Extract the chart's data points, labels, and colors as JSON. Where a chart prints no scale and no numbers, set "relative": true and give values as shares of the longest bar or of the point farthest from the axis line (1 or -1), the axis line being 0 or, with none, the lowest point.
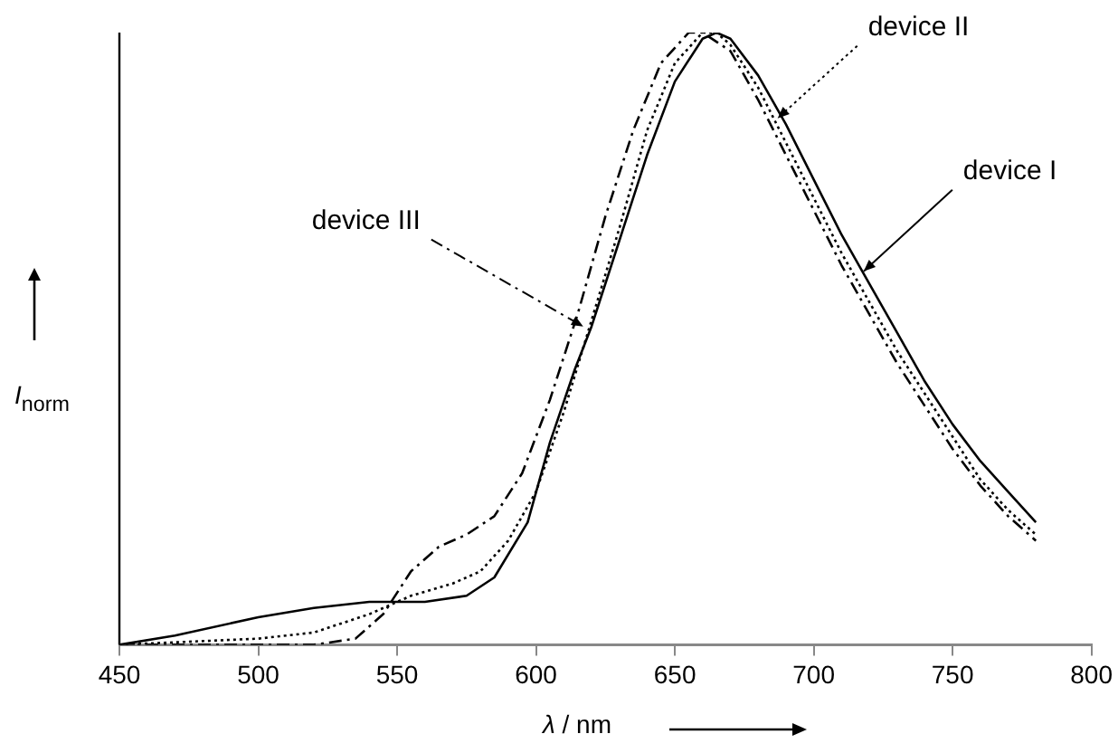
{
  "chart_data": {
    "type": "line",
    "xlabel": "λ / nm",
    "ylabel": "I$_{norm}$",
    "relative": true,
    "xlim": [
      450,
      800
    ],
    "xticks": [
      450,
      500,
      550,
      600,
      650,
      700,
      750,
      800
    ],
    "series": [
      {
        "color": "#000000",
        "line_style": "solid",
        "x": [
          450,
          470,
          500,
          520,
          540,
          560,
          575,
          585,
          597,
          605,
          614,
          620,
          630,
          640,
          650,
          660,
          665,
          670,
          680,
          690,
          700,
          710,
          720,
          730,
          740,
          750,
          760,
          770,
          780
        ],
        "values": [
          0,
          0.015,
          0.045,
          0.06,
          0.07,
          0.07,
          0.08,
          0.11,
          0.2,
          0.33,
          0.45,
          0.52,
          0.66,
          0.8,
          0.92,
          0.99,
          1.0,
          0.99,
          0.93,
          0.85,
          0.76,
          0.67,
          0.59,
          0.51,
          0.43,
          0.36,
          0.3,
          0.25,
          0.2
        ]
      },
      {
        "color": "#000000",
        "line_style": "dotted",
        "x": [
          450,
          500,
          520,
          540,
          555,
          570,
          580,
          590,
          600,
          610,
          620,
          630,
          640,
          650,
          660,
          665,
          670,
          680,
          690,
          700,
          710,
          720,
          730,
          740,
          750,
          760,
          770,
          780
        ],
        "values": [
          0,
          0.01,
          0.02,
          0.05,
          0.08,
          0.1,
          0.12,
          0.17,
          0.25,
          0.38,
          0.53,
          0.68,
          0.84,
          0.95,
          1.0,
          1.0,
          0.98,
          0.91,
          0.82,
          0.73,
          0.64,
          0.56,
          0.48,
          0.41,
          0.34,
          0.27,
          0.22,
          0.18
        ]
      },
      {
        "color": "#000000",
        "line_style": "dashed",
        "x": [
          450,
          520,
          535,
          545,
          555,
          565,
          575,
          585,
          595,
          605,
          615,
          625,
          635,
          645,
          655,
          660,
          670,
          680,
          690,
          700,
          710,
          720,
          730,
          740,
          750,
          760,
          770,
          780
        ],
        "values": [
          0,
          0,
          0.01,
          0.05,
          0.12,
          0.16,
          0.18,
          0.21,
          0.28,
          0.4,
          0.54,
          0.7,
          0.84,
          0.95,
          1.0,
          1.0,
          0.97,
          0.89,
          0.8,
          0.71,
          0.62,
          0.54,
          0.46,
          0.39,
          0.32,
          0.26,
          0.21,
          0.17
        ]
      }
    ],
    "annotations": [
      {
        "text": "device I",
        "x": 718,
        "y": 0.61
      },
      {
        "text": "device II",
        "x": 687,
        "y": 0.86
      },
      {
        "text": "device III",
        "x": 617,
        "y": 0.52
      }
    ]
  }
}
